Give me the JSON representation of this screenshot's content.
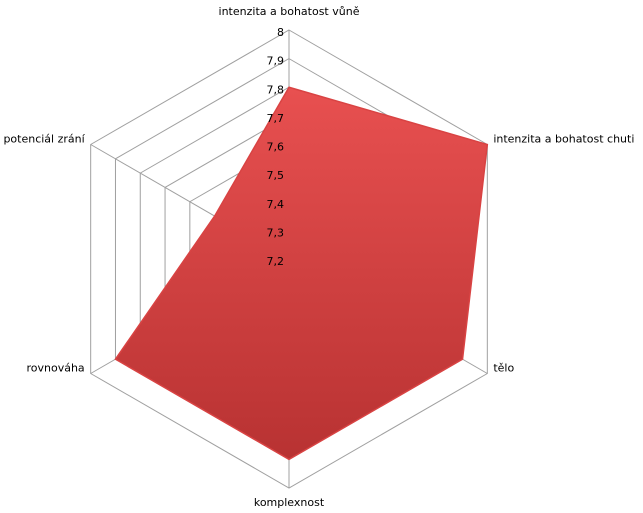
{
  "chart_data": {
    "type": "radar",
    "categories": [
      "intenzita a bohatost vůně",
      "intenzita a bohatost chuti",
      "tělo",
      "komplexnost",
      "rovnováha",
      "potenciál zrání"
    ],
    "series": [
      {
        "color": "#d94343",
        "values": [
          7.8,
          8.0,
          7.9,
          7.9,
          7.9,
          7.5
        ]
      }
    ],
    "ylim": [
      7.2,
      8
    ],
    "yticks": [
      {
        "value": 7.2,
        "label": "7,2"
      },
      {
        "value": 7.3,
        "label": "7,3"
      },
      {
        "value": 7.4,
        "label": "7,4"
      },
      {
        "value": 7.5,
        "label": "7,5"
      },
      {
        "value": 7.6,
        "label": "7,6"
      },
      {
        "value": 7.7,
        "label": "7,7"
      },
      {
        "value": 7.8,
        "label": "7,8"
      },
      {
        "value": 7.9,
        "label": "7,9"
      },
      8
    ],
    "grid": true
  }
}
